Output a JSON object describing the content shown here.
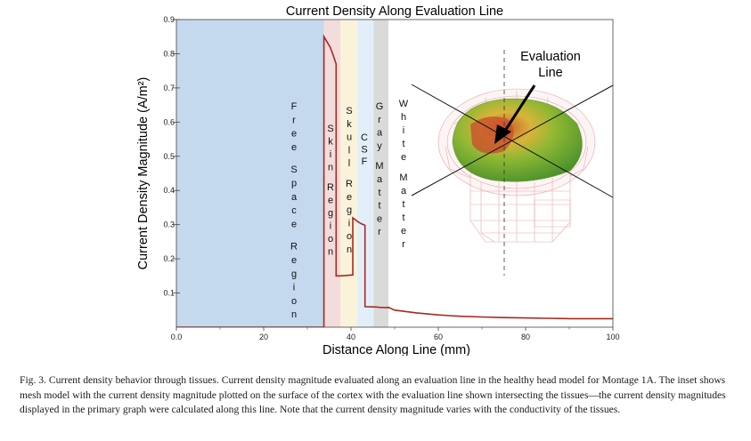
{
  "chart_data": {
    "type": "line",
    "title": "Current Density Along Evaluation Line",
    "xlabel": "Distance Along Line (mm)",
    "ylabel": "Current Density Magnitude (A/m²)",
    "xlim": [
      0,
      100
    ],
    "ylim": [
      0,
      0.9
    ],
    "x_ticks": [
      {
        "value": 0,
        "label": "0.0"
      },
      {
        "value": 20,
        "label": "20"
      },
      {
        "value": 40,
        "label": "40"
      },
      {
        "value": 60,
        "label": "60"
      },
      {
        "value": 80,
        "label": "80"
      },
      {
        "value": 100,
        "label": "100"
      }
    ],
    "y_ticks": [
      {
        "value": 0.1,
        "label": "0.1"
      },
      {
        "value": 0.2,
        "label": "0.2"
      },
      {
        "value": 0.3,
        "label": "0.3"
      },
      {
        "value": 0.4,
        "label": "0.4"
      },
      {
        "value": 0.5,
        "label": "0.5"
      },
      {
        "value": 0.6,
        "label": "0.6"
      },
      {
        "value": 0.7,
        "label": "0.7"
      },
      {
        "value": 0.8,
        "label": "0.8"
      },
      {
        "value": 0.9,
        "label": "0.9"
      }
    ],
    "series": [
      {
        "color": "#a52a22",
        "x": [
          0,
          33.8,
          33.8,
          35.2,
          35.8,
          36.6,
          36.6,
          37.4,
          38.6,
          40.4,
          40.4,
          41.4,
          42.3,
          43.2,
          43.2,
          45.8,
          46.6,
          48.6,
          48.6,
          50,
          55,
          60,
          65,
          70,
          75,
          80,
          85,
          90,
          95,
          100
        ],
        "y": [
          0.0,
          0.0,
          0.85,
          0.82,
          0.8,
          0.77,
          0.15,
          0.15,
          0.151,
          0.153,
          0.32,
          0.31,
          0.303,
          0.298,
          0.06,
          0.059,
          0.058,
          0.057,
          0.058,
          0.05,
          0.042,
          0.036,
          0.032,
          0.03,
          0.028,
          0.027,
          0.026,
          0.025,
          0.025,
          0.025
        ]
      }
    ],
    "regions": [
      {
        "label": "Free Space Region",
        "x0": 0,
        "x1": 33.8,
        "color": "#c4d8ee"
      },
      {
        "label": "Skin Region",
        "x0": 33.8,
        "x1": 37.6,
        "color": "#f3dcdc"
      },
      {
        "label": "Skull Region",
        "x0": 37.6,
        "x1": 41.4,
        "color": "#fbf2da"
      },
      {
        "label": "CSF",
        "x0": 41.4,
        "x1": 45.2,
        "color": "#e2eff9"
      },
      {
        "label": "Gray Matter",
        "x0": 45.2,
        "x1": 48.6,
        "color": "#dadada"
      },
      {
        "label": "White Matter",
        "x0": 48.6,
        "x1": 100,
        "color": "#ffffff"
      }
    ],
    "inset_annotation": "Evaluation Line",
    "grid": false
  },
  "caption": {
    "label": "Fig. 3.",
    "text": "Current density behavior through tissues. Current density magnitude evaluated along an evaluation line in the healthy head model for Montage 1A. The inset shows mesh model with the current density magnitude plotted on the surface of the cortex with the evaluation line shown intersecting the tissues—the current density magnitudes displayed in the primary graph were calculated along this line. Note that the current density magnitude varies with the conductivity of the tissues."
  }
}
